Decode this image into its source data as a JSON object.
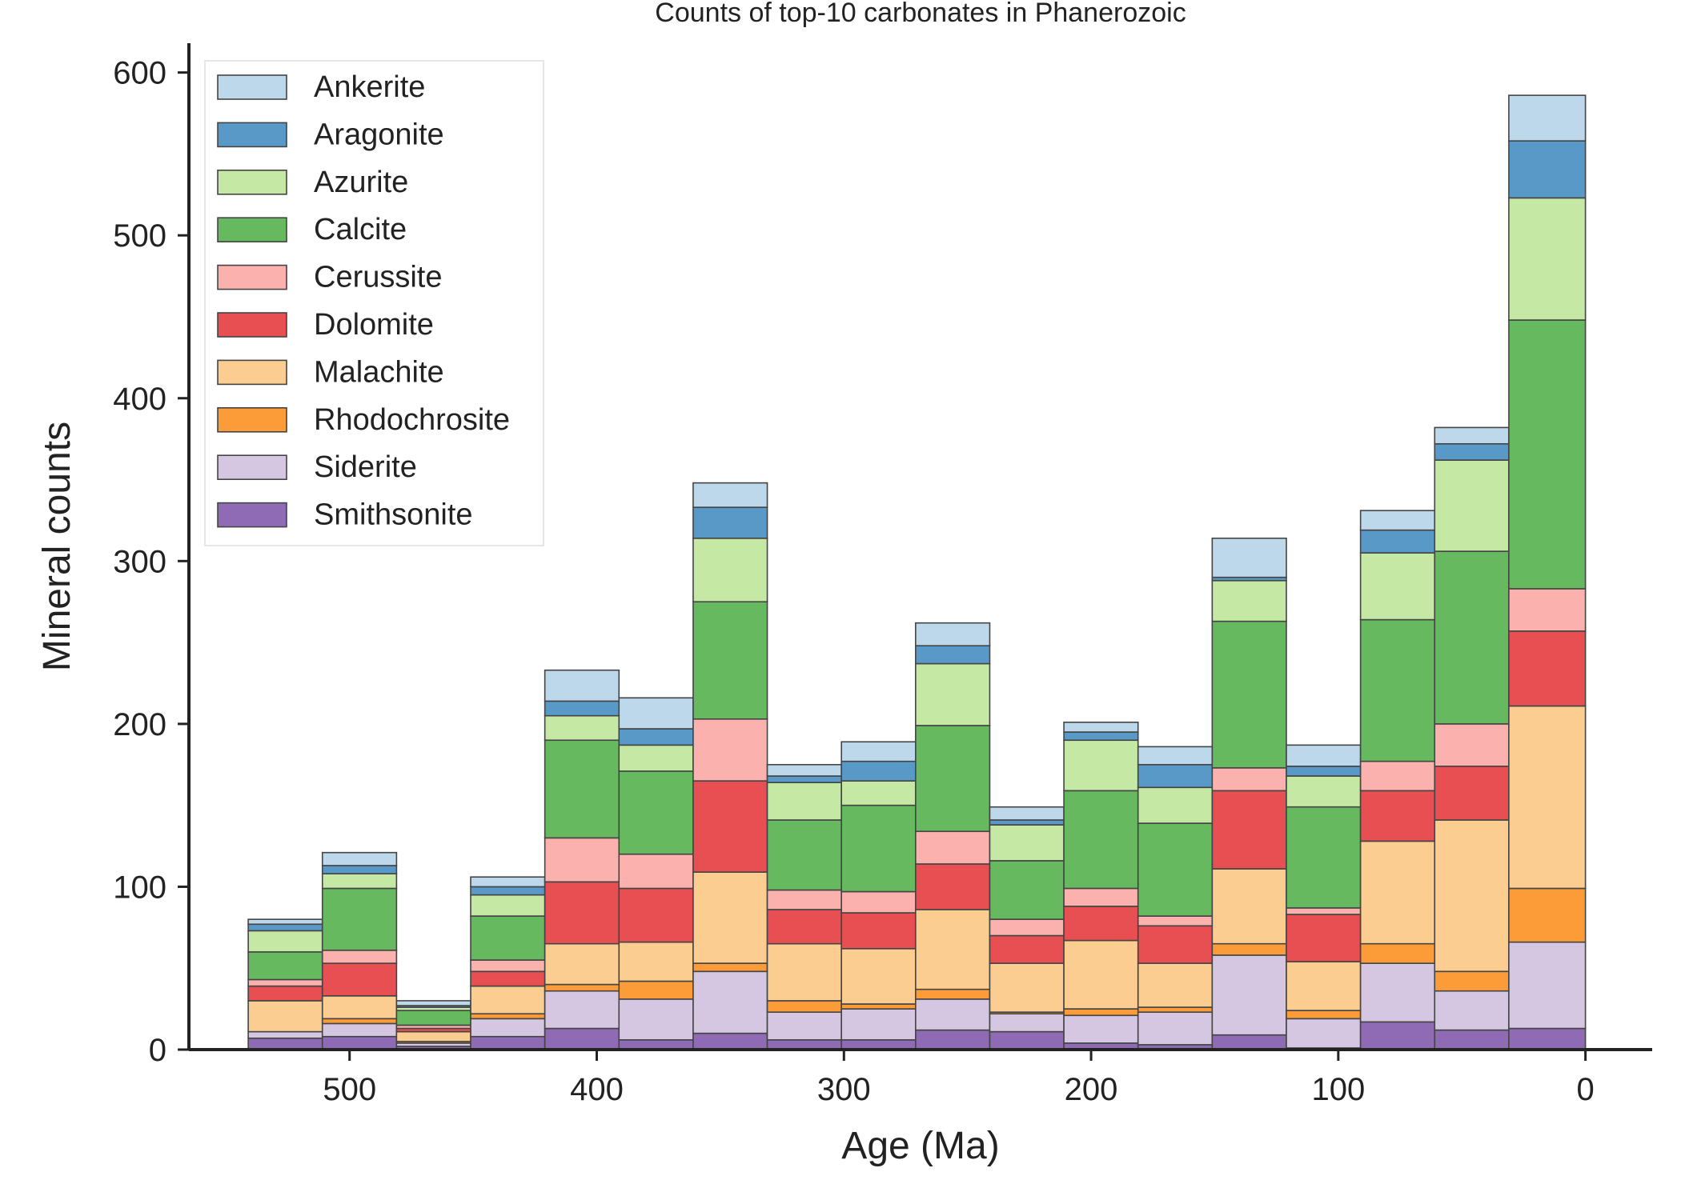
{
  "chart_data": {
    "type": "bar",
    "stacked": true,
    "title": "Counts of top-10 carbonates in Phanerozoic",
    "xlabel": "Age (Ma)",
    "ylabel": "Mineral counts",
    "x_reversed": true,
    "xlim": [
      565,
      -27
    ],
    "ylim": [
      0,
      618
    ],
    "x_ticks": [
      500,
      400,
      300,
      200,
      100,
      0
    ],
    "y_ticks": [
      0,
      100,
      200,
      300,
      400,
      500,
      600
    ],
    "grid": false,
    "legend_position": "top-left",
    "bin_edges": [
      541,
      511,
      481,
      451,
      421,
      391,
      361,
      331,
      301,
      271,
      241,
      211,
      181,
      151,
      121,
      91,
      61,
      31,
      0
    ],
    "series": [
      {
        "name": "Smithsonite",
        "color": "#8e6bb4",
        "values": [
          7,
          8,
          2,
          8,
          13,
          6,
          10,
          6,
          6,
          12,
          11,
          4,
          3,
          9,
          1,
          17,
          12,
          13
        ]
      },
      {
        "name": "Siderite",
        "color": "#d5c6e1",
        "values": [
          4,
          8,
          2,
          11,
          23,
          25,
          38,
          17,
          19,
          19,
          11,
          17,
          20,
          49,
          18,
          36,
          24,
          53
        ]
      },
      {
        "name": "Rhodochrosite",
        "color": "#fb9c38",
        "values": [
          0,
          3,
          1,
          3,
          4,
          11,
          5,
          7,
          3,
          6,
          1,
          4,
          3,
          7,
          5,
          12,
          12,
          33
        ]
      },
      {
        "name": "Malachite",
        "color": "#fccd90",
        "values": [
          19,
          14,
          6,
          17,
          25,
          24,
          56,
          35,
          34,
          49,
          30,
          42,
          27,
          46,
          30,
          63,
          93,
          112
        ]
      },
      {
        "name": "Dolomite",
        "color": "#e74f52",
        "values": [
          9,
          20,
          2,
          9,
          38,
          33,
          56,
          21,
          22,
          28,
          17,
          21,
          23,
          48,
          29,
          31,
          33,
          46
        ]
      },
      {
        "name": "Cerussite",
        "color": "#fbb2af",
        "values": [
          4,
          8,
          2,
          7,
          27,
          21,
          38,
          12,
          13,
          20,
          10,
          11,
          6,
          14,
          4,
          18,
          26,
          26
        ]
      },
      {
        "name": "Calcite",
        "color": "#66b95f",
        "values": [
          17,
          38,
          9,
          27,
          60,
          51,
          72,
          43,
          53,
          65,
          36,
          60,
          57,
          90,
          62,
          87,
          106,
          165
        ]
      },
      {
        "name": "Azurite",
        "color": "#c6e8a5",
        "values": [
          13,
          9,
          2,
          13,
          15,
          16,
          39,
          23,
          15,
          38,
          22,
          31,
          22,
          25,
          19,
          41,
          56,
          75
        ]
      },
      {
        "name": "Aragonite",
        "color": "#5999c8",
        "values": [
          4,
          5,
          1,
          5,
          9,
          10,
          19,
          4,
          12,
          11,
          3,
          5,
          14,
          2,
          6,
          14,
          10,
          35
        ]
      },
      {
        "name": "Ankerite",
        "color": "#bcd8ea",
        "values": [
          3,
          8,
          3,
          6,
          19,
          19,
          15,
          7,
          12,
          14,
          8,
          6,
          11,
          24,
          13,
          12,
          10,
          28
        ]
      }
    ]
  }
}
